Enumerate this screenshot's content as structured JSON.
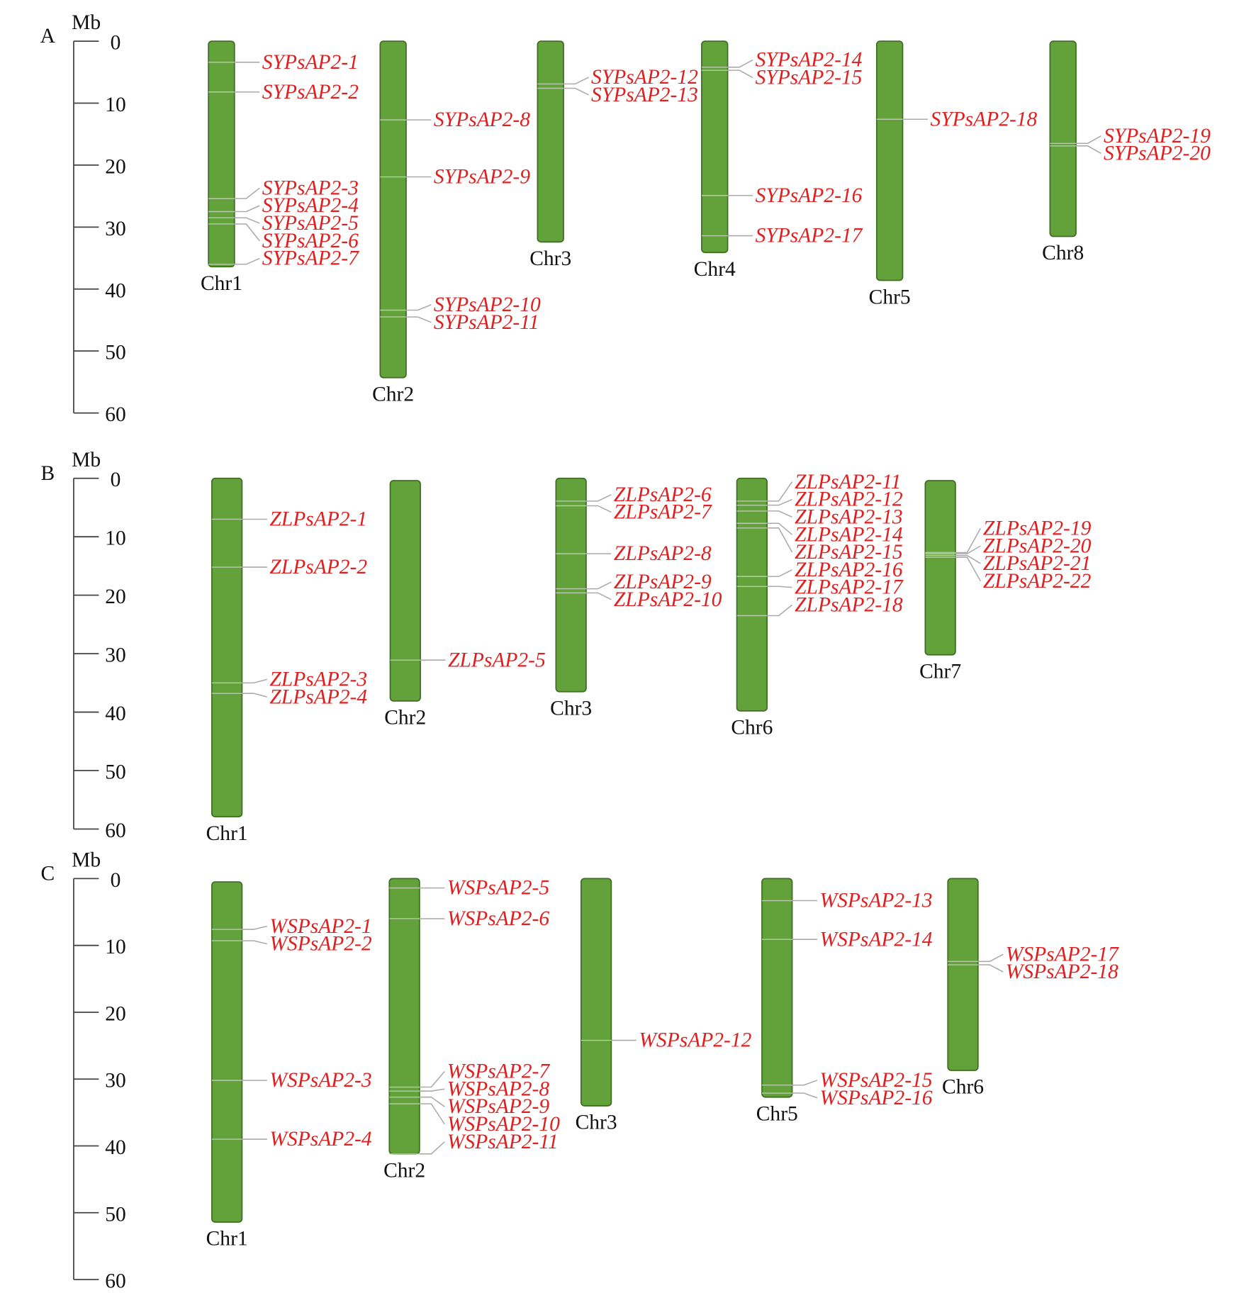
{
  "panels": [
    {
      "label": "A",
      "axis": {
        "title": "Mb",
        "ylim": [
          0,
          60
        ],
        "yticks": [
          0,
          10,
          20,
          30,
          40,
          50,
          60
        ]
      },
      "chromosomes": [
        {
          "name": "Chr1",
          "start": 0,
          "end": 36.4,
          "genes": [
            {
              "name": "SYPsAP2-1",
              "position": 3.4
            },
            {
              "name": "SYPsAP2-2",
              "position": 8.2
            },
            {
              "name": "SYPsAP2-3",
              "position": 25.4
            },
            {
              "name": "SYPsAP2-4",
              "position": 27.5
            },
            {
              "name": "SYPsAP2-5",
              "position": 28.5
            },
            {
              "name": "SYPsAP2-6",
              "position": 29.5
            },
            {
              "name": "SYPsAP2-7",
              "position": 36
            }
          ]
        },
        {
          "name": "Chr2",
          "start": 0,
          "end": 54.3,
          "genes": [
            {
              "name": "SYPsAP2-8",
              "position": 12.7
            },
            {
              "name": "SYPsAP2-9",
              "position": 21.9
            },
            {
              "name": "SYPsAP2-10",
              "position": 43.4
            },
            {
              "name": "SYPsAP2-11",
              "position": 44.5
            }
          ]
        },
        {
          "name": "Chr3",
          "start": 0,
          "end": 32.4,
          "genes": [
            {
              "name": "SYPsAP2-12",
              "position": 6.9
            },
            {
              "name": "SYPsAP2-13",
              "position": 7.6
            }
          ]
        },
        {
          "name": "Chr4",
          "start": 0,
          "end": 34.1,
          "genes": [
            {
              "name": "SYPsAP2-14",
              "position": 4.2
            },
            {
              "name": "SYPsAP2-15",
              "position": 4.7
            },
            {
              "name": "SYPsAP2-16",
              "position": 24.9
            },
            {
              "name": "SYPsAP2-17",
              "position": 31.4
            }
          ]
        },
        {
          "name": "Chr5",
          "start": 0,
          "end": 38.6,
          "genes": [
            {
              "name": "SYPsAP2-18",
              "position": 12.6
            }
          ]
        },
        {
          "name": "Chr8",
          "start": 0,
          "end": 31.5,
          "genes": [
            {
              "name": "SYPsAP2-19",
              "position": 16.5
            },
            {
              "name": "SYPsAP2-20",
              "position": 16.9
            }
          ]
        }
      ]
    },
    {
      "label": "B",
      "axis": {
        "title": "Mb",
        "ylim": [
          0,
          60
        ],
        "yticks": [
          0,
          10,
          20,
          30,
          40,
          50,
          60
        ]
      },
      "chromosomes": [
        {
          "name": "Chr1",
          "start": 0,
          "end": 57.9,
          "genes": [
            {
              "name": "ZLPsAP2-1",
              "position": 7.0
            },
            {
              "name": "ZLPsAP2-2",
              "position": 15.2
            },
            {
              "name": "ZLPsAP2-3",
              "position": 35.0
            },
            {
              "name": "ZLPsAP2-4",
              "position": 36.8
            }
          ]
        },
        {
          "name": "Chr2",
          "start": 0.4,
          "end": 38.1,
          "genes": [
            {
              "name": "ZLPsAP2-5",
              "position": 31.1
            }
          ]
        },
        {
          "name": "Chr3",
          "start": 0,
          "end": 36.5,
          "genes": [
            {
              "name": "ZLPsAP2-6",
              "position": 3.9
            },
            {
              "name": "ZLPsAP2-7",
              "position": 4.7
            },
            {
              "name": "ZLPsAP2-8",
              "position": 12.9
            },
            {
              "name": "ZLPsAP2-9",
              "position": 18.9
            },
            {
              "name": "ZLPsAP2-10",
              "position": 19.6
            }
          ]
        },
        {
          "name": "Chr6",
          "start": 0,
          "end": 39.8,
          "genes": [
            {
              "name": "ZLPsAP2-11",
              "position": 3.9
            },
            {
              "name": "ZLPsAP2-12",
              "position": 4.6
            },
            {
              "name": "ZLPsAP2-13",
              "position": 5.6
            },
            {
              "name": "ZLPsAP2-14",
              "position": 7.7
            },
            {
              "name": "ZLPsAP2-15",
              "position": 8.5
            },
            {
              "name": "ZLPsAP2-16",
              "position": 16.8
            },
            {
              "name": "ZLPsAP2-17",
              "position": 18.5
            },
            {
              "name": "ZLPsAP2-18",
              "position": 23.5
            }
          ]
        },
        {
          "name": "Chr7",
          "start": 0.4,
          "end": 30.2,
          "genes": [
            {
              "name": "ZLPsAP2-19",
              "position": 12.7
            },
            {
              "name": "ZLPsAP2-20",
              "position": 12.9
            },
            {
              "name": "ZLPsAP2-21",
              "position": 13.2
            },
            {
              "name": "ZLPsAP2-22",
              "position": 13.5
            }
          ]
        }
      ]
    },
    {
      "label": "C",
      "axis": {
        "title": "Mb",
        "ylim": [
          0,
          60
        ],
        "yticks": [
          0,
          10,
          20,
          30,
          40,
          50,
          60
        ]
      },
      "chromosomes": [
        {
          "name": "Chr1",
          "start": 0.5,
          "end": 51.4,
          "genes": [
            {
              "name": "WSPsAP2-1",
              "position": 7.6
            },
            {
              "name": "WSPsAP2-2",
              "position": 9.3
            },
            {
              "name": "WSPsAP2-3",
              "position": 30.2
            },
            {
              "name": "WSPsAP2-4",
              "position": 39.0
            }
          ]
        },
        {
          "name": "Chr2",
          "start": 0,
          "end": 41.2,
          "genes": [
            {
              "name": "WSPsAP2-5",
              "position": 1.4
            },
            {
              "name": "WSPsAP2-6",
              "position": 6.0
            },
            {
              "name": "WSPsAP2-7",
              "position": 31.2
            },
            {
              "name": "WSPsAP2-8",
              "position": 31.8
            },
            {
              "name": "WSPsAP2-9",
              "position": 32.7
            },
            {
              "name": "WSPsAP2-10",
              "position": 33.7
            },
            {
              "name": "WSPsAP2-11",
              "position": 41.2
            }
          ]
        },
        {
          "name": "Chr3",
          "start": 0,
          "end": 34.0,
          "genes": [
            {
              "name": "WSPsAP2-12",
              "position": 24.2
            }
          ]
        },
        {
          "name": "Chr5",
          "start": 0,
          "end": 32.7,
          "genes": [
            {
              "name": "WSPsAP2-13",
              "position": 3.3
            },
            {
              "name": "WSPsAP2-14",
              "position": 9.1
            },
            {
              "name": "WSPsAP2-15",
              "position": 30.9
            },
            {
              "name": "WSPsAP2-16",
              "position": 32.1
            }
          ]
        },
        {
          "name": "Chr6",
          "start": 0,
          "end": 28.7,
          "genes": [
            {
              "name": "WSPsAP2-17",
              "position": 12.4
            },
            {
              "name": "WSPsAP2-18",
              "position": 12.9
            }
          ]
        }
      ]
    }
  ]
}
